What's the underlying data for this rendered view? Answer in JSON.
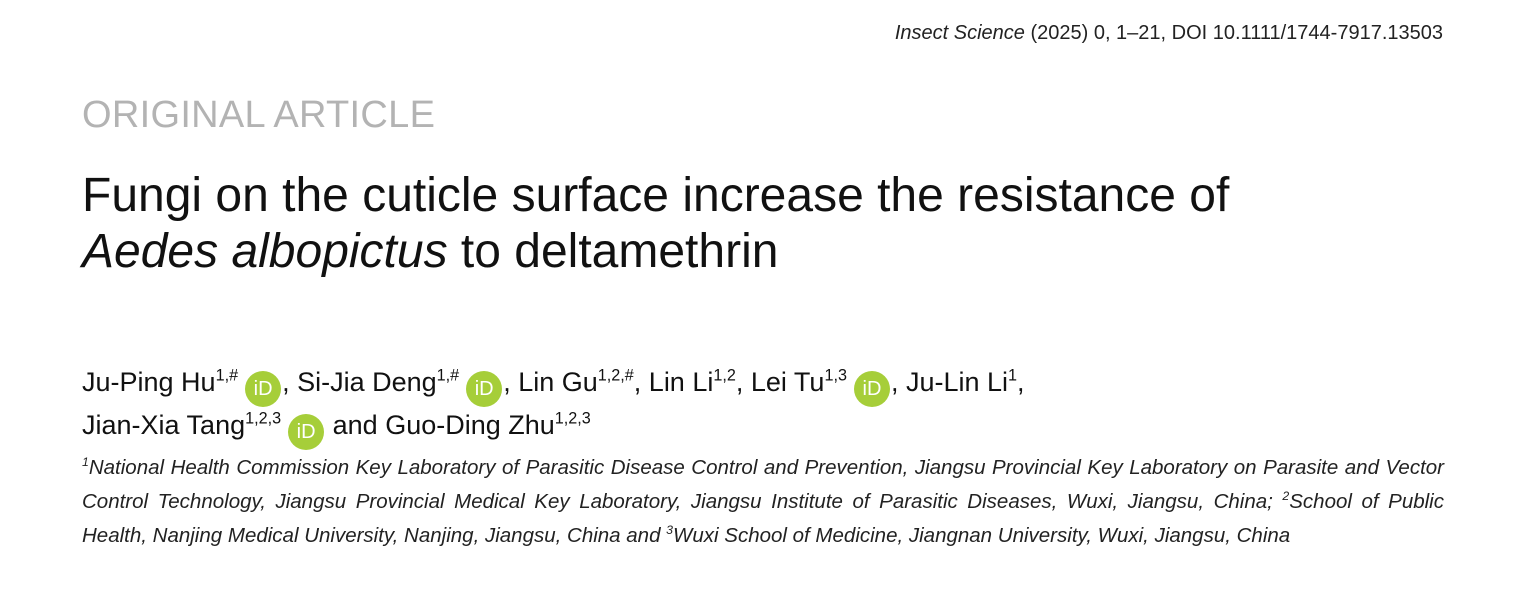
{
  "journal": {
    "name": "Insect Science",
    "details": " (2025) 0, 1–21, DOI 10.1111/1744-7917.13503"
  },
  "article_type": "ORIGINAL ARTICLE",
  "title": {
    "line1": "Fungi on the cuticle surface increase the resistance of",
    "species": "Aedes albopictus",
    "line2_rest": " to deltamethrin"
  },
  "orcid_label": "iD",
  "authors": [
    {
      "name": "Ju-Ping Hu",
      "sup": "1,#",
      "orcid": true,
      "sep": ", "
    },
    {
      "name": "Si-Jia Deng",
      "sup": "1,#",
      "orcid": true,
      "sep": ", "
    },
    {
      "name": "Lin Gu",
      "sup": "1,2,#",
      "orcid": false,
      "sep": ", "
    },
    {
      "name": "Lin Li",
      "sup": "1,2",
      "orcid": false,
      "sep": ", "
    },
    {
      "name": "Lei Tu",
      "sup": "1,3",
      "orcid": true,
      "sep": ", "
    },
    {
      "name": "Ju-Lin Li",
      "sup": "1",
      "orcid": false,
      "sep": ","
    },
    {
      "name": "Jian-Xia Tang",
      "sup": "1,2,3",
      "orcid": true,
      "sep": " and "
    },
    {
      "name": "Guo-Ding Zhu",
      "sup": "1,2,3",
      "orcid": false,
      "sep": ""
    }
  ],
  "affiliations": [
    {
      "num": "1",
      "text": "National Health Commission Key Laboratory of Parasitic Disease Control and Prevention, Jiangsu Provincial Key Laboratory on Parasite and Vector Control Technology, Jiangsu Provincial Medical Key Laboratory, Jiangsu Institute of Parasitic Diseases, Wuxi, Jiangsu, China; "
    },
    {
      "num": "2",
      "text": "School of Public Health, Nanjing Medical University, Nanjing, Jiangsu, China and "
    },
    {
      "num": "3",
      "text": "Wuxi School of Medicine, Jiangnan University, Wuxi, Jiangsu, China"
    }
  ]
}
